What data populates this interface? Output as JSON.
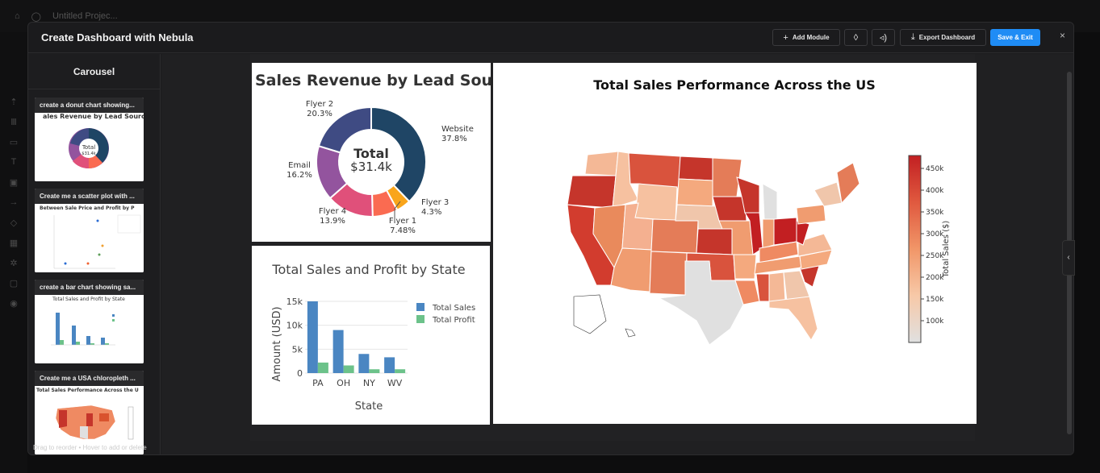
{
  "background": {
    "project_name": "Untitled Projec..."
  },
  "modal": {
    "title": "Create Dashboard with Nebula",
    "buttons": {
      "add_module": "Add Module",
      "export": "Export Dashboard",
      "save_exit": "Save & Exit"
    },
    "close": "×"
  },
  "sidebar": {
    "title": "Carousel",
    "cards": [
      {
        "label": "create a donut chart showing..."
      },
      {
        "label": "Create me a scatter plot with ..."
      },
      {
        "label": "create a bar chart showing sa..."
      },
      {
        "label": "Create me a USA chloropleth ..."
      }
    ],
    "footer": "Drag to reorder • Hover to add or delete"
  },
  "chart_data": [
    {
      "type": "pie",
      "title": "Sales Revenue by Lead Source",
      "center_label": "Total",
      "center_value": "$31.4k",
      "slices": [
        {
          "name": "Website",
          "pct": 37.8,
          "label": "37.8%",
          "color": "#1f4565"
        },
        {
          "name": "Flyer 3",
          "pct": 4.3,
          "label": "4.3%",
          "color": "#f9a51b"
        },
        {
          "name": "Flyer 1",
          "pct": 7.48,
          "label": "7.48%",
          "color": "#fa6b51"
        },
        {
          "name": "Flyer 4",
          "pct": 13.9,
          "label": "13.9%",
          "color": "#e0507a"
        },
        {
          "name": "Email",
          "pct": 16.2,
          "label": "16.2%",
          "color": "#93549e"
        },
        {
          "name": "Flyer 2",
          "pct": 20.3,
          "label": "20.3%",
          "color": "#3f4b83"
        }
      ]
    },
    {
      "type": "bar",
      "title": "Total Sales and Profit by State",
      "categories": [
        "PA",
        "OH",
        "NY",
        "WV"
      ],
      "series": [
        {
          "name": "Total Sales",
          "values": [
            15000,
            9000,
            4000,
            3300
          ],
          "color": "#4a86c2"
        },
        {
          "name": "Total Profit",
          "values": [
            2200,
            1600,
            800,
            800
          ],
          "color": "#6cc28a"
        }
      ],
      "xlabel": "State",
      "ylabel": "Amount (USD)",
      "ylim": [
        0,
        15500
      ],
      "yticks": [
        0,
        5000,
        10000,
        15000
      ],
      "ytick_labels": [
        "0",
        "5k",
        "10k",
        "15k"
      ]
    },
    {
      "type": "heatmap",
      "subtype": "choropleth",
      "title": "Total Sales Performance Across the US",
      "colorbar_title": "Total Sales ($)",
      "colorbar_ticks": [
        "100k",
        "150k",
        "200k",
        "250k",
        "300k",
        "350k",
        "400k",
        "450k"
      ],
      "colorscale": [
        "#e0e0e0",
        "#f7c9a8",
        "#f19668",
        "#e0593f",
        "#c21f22"
      ]
    }
  ]
}
